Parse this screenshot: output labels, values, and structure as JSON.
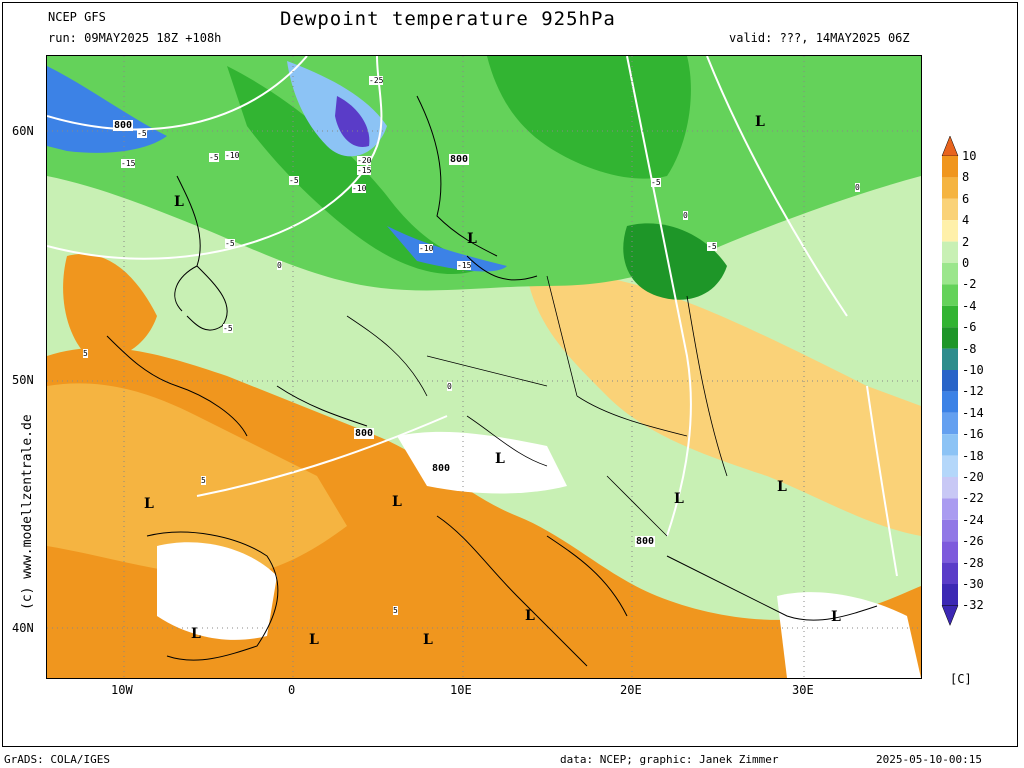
{
  "header": {
    "model": "NCEP GFS",
    "run": "run: 09MAY2025 18Z +108h",
    "title": "Dewpoint temperature 925hPa",
    "valid": "valid: ???, 14MAY2025 06Z"
  },
  "axes": {
    "lat_labels": [
      "60N",
      "50N",
      "40N"
    ],
    "lon_labels": [
      "10W",
      "0",
      "10E",
      "20E",
      "30E"
    ]
  },
  "legend": {
    "unit": "[C]",
    "levels": [
      "10",
      "8",
      "6",
      "4",
      "2",
      "0",
      "-2",
      "-4",
      "-6",
      "-8",
      "-10",
      "-12",
      "-14",
      "-16",
      "-18",
      "-20",
      "-22",
      "-24",
      "-26",
      "-28",
      "-30",
      "-32"
    ],
    "colors": [
      "#e8641e",
      "#f0961e",
      "#f5b441",
      "#fad278",
      "#fff0aa",
      "#c8f0b4",
      "#9be68c",
      "#64d25a",
      "#32b432",
      "#1e9628",
      "#2d8c8c",
      "#2864c8",
      "#3c82e6",
      "#64a0f0",
      "#8cc3f5",
      "#b4d7fa",
      "#c8c8f5",
      "#aa9bf0",
      "#9178e6",
      "#7d5adc",
      "#5a3cc8",
      "#3c28b4"
    ]
  },
  "map_labels": {
    "lows": [
      "L",
      "L",
      "L",
      "L",
      "L",
      "L",
      "L",
      "L",
      "L",
      "L",
      "L",
      "L",
      "L"
    ],
    "heights": [
      "800",
      "800",
      "800",
      "800",
      "800"
    ],
    "contours": [
      "-25",
      "-20",
      "-15",
      "-10",
      "-5",
      "-5",
      "-5",
      "-10",
      "-15",
      "-5",
      "-5",
      "0",
      "0",
      "0",
      "5",
      "5",
      "5",
      "0",
      "-5",
      "-10",
      "-15",
      "-5"
    ]
  },
  "watermark": "(c) www.modellzentrale.de",
  "footer": {
    "left": "GrADS: COLA/IGES",
    "center": "data: NCEP; graphic: Janek Zimmer",
    "right": "2025-05-10-00:15"
  }
}
